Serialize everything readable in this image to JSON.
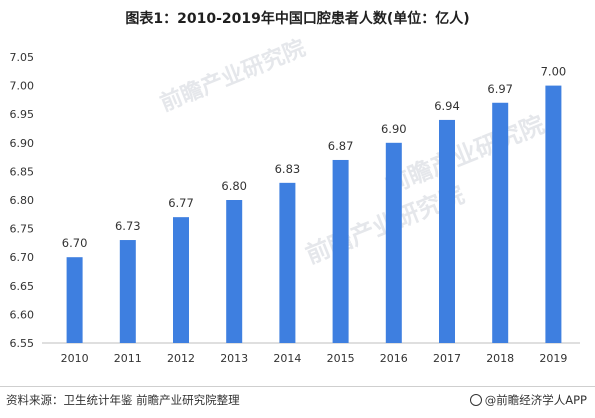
{
  "title": "图表1：2010-2019年中国口腔患者人数(单位：亿人)",
  "footer": {
    "source": "资料来源：卫生统计年鉴 前瞻产业研究院整理",
    "brand": "@前瞻经济学人APP"
  },
  "watermark": {
    "text": "前瞻产业研究院"
  },
  "colors": {
    "bar": "#3E7FE0",
    "axis": "#bfbfbf",
    "text": "#333333"
  },
  "chart_data": {
    "type": "bar",
    "categories": [
      "2010",
      "2011",
      "2012",
      "2013",
      "2014",
      "2015",
      "2016",
      "2017",
      "2018",
      "2019"
    ],
    "values": [
      6.7,
      6.73,
      6.77,
      6.8,
      6.83,
      6.87,
      6.9,
      6.94,
      6.97,
      7.0
    ],
    "data_labels": [
      "6.70",
      "6.73",
      "6.77",
      "6.80",
      "6.83",
      "6.87",
      "6.90",
      "6.94",
      "6.97",
      "7.00"
    ],
    "ylim": [
      6.55,
      7.05
    ],
    "yticks": [
      "6.55",
      "6.60",
      "6.65",
      "6.70",
      "6.75",
      "6.80",
      "6.85",
      "6.90",
      "6.95",
      "7.00",
      "7.05"
    ],
    "grid": false,
    "legend": "none"
  }
}
